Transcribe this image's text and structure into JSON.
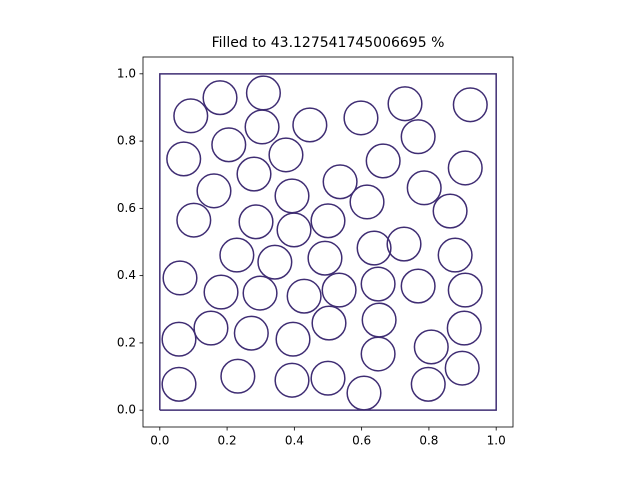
{
  "chart_data": {
    "type": "circles",
    "title": "Filled to 43.127541745006695 %",
    "color": "#3f2d73",
    "radius": 0.05,
    "boundary": {
      "x": [
        0,
        1,
        1,
        0,
        0
      ],
      "y": [
        0,
        0,
        1,
        1,
        0
      ]
    },
    "x": [
      0.092,
      0.179,
      0.308,
      0.304,
      0.446,
      0.598,
      0.729,
      0.923,
      0.768,
      0.071,
      0.205,
      0.375,
      0.664,
      0.908,
      0.161,
      0.28,
      0.393,
      0.536,
      0.616,
      0.786,
      0.863,
      0.101,
      0.286,
      0.399,
      0.5,
      0.229,
      0.342,
      0.491,
      0.637,
      0.726,
      0.878,
      0.06,
      0.182,
      0.298,
      0.429,
      0.533,
      0.649,
      0.768,
      0.908,
      0.057,
      0.152,
      0.272,
      0.396,
      0.503,
      0.652,
      0.905,
      0.649,
      0.807,
      0.899,
      0.057,
      0.232,
      0.393,
      0.5,
      0.607,
      0.798
    ],
    "y": [
      0.875,
      0.929,
      0.943,
      0.842,
      0.848,
      0.869,
      0.911,
      0.908,
      0.813,
      0.747,
      0.789,
      0.759,
      0.741,
      0.72,
      0.652,
      0.702,
      0.637,
      0.679,
      0.619,
      0.661,
      0.592,
      0.565,
      0.56,
      0.536,
      0.563,
      0.461,
      0.44,
      0.452,
      0.482,
      0.494,
      0.461,
      0.393,
      0.351,
      0.348,
      0.339,
      0.357,
      0.375,
      0.369,
      0.357,
      0.211,
      0.244,
      0.229,
      0.211,
      0.259,
      0.268,
      0.244,
      0.167,
      0.188,
      0.125,
      0.077,
      0.101,
      0.089,
      0.095,
      0.051,
      0.077
    ],
    "xlim": [
      -0.05,
      1.05
    ],
    "ylim": [
      -0.05,
      1.05
    ],
    "xticks": [
      {
        "value": 0,
        "label": "0.0"
      },
      0.2,
      0.4,
      0.6,
      0.8,
      {
        "value": 1,
        "label": "1.0"
      }
    ],
    "yticks": [
      {
        "value": 0,
        "label": "0.0"
      },
      0.2,
      0.4,
      0.6,
      0.8,
      {
        "value": 1,
        "label": "1.0"
      }
    ]
  }
}
